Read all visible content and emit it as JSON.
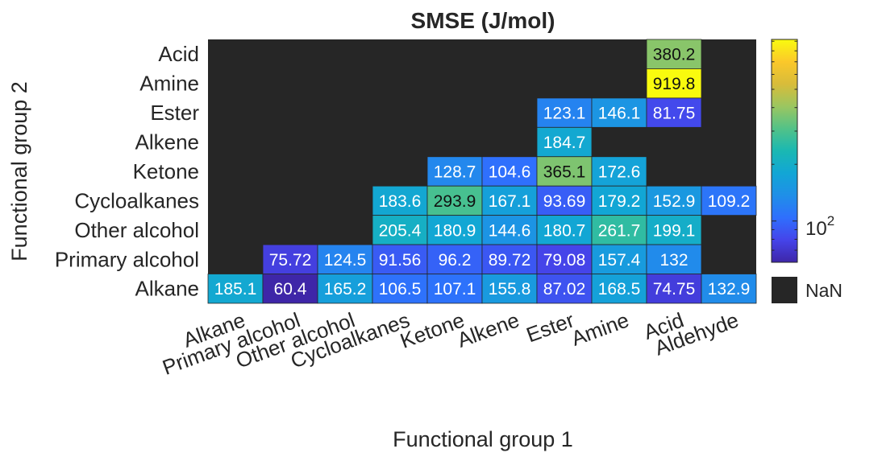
{
  "chart_data": {
    "type": "heatmap",
    "title": "SMSE (J/mol)",
    "xlabel": "Functional group 1",
    "ylabel": "Functional group 2",
    "x_categories": [
      "Alkane",
      "Primary alcohol",
      "Other alcohol",
      "Cycloalkanes",
      "Ketone",
      "Alkene",
      "Ester",
      "Amine",
      "Acid",
      "Aldehyde"
    ],
    "y_categories": [
      "Acid",
      "Amine",
      "Ester",
      "Alkene",
      "Ketone",
      "Cycloalkanes",
      "Other alcohol",
      "Primary alcohol",
      "Alkane"
    ],
    "values": [
      [
        null,
        null,
        null,
        null,
        null,
        null,
        null,
        null,
        380.2,
        null
      ],
      [
        null,
        null,
        null,
        null,
        null,
        null,
        null,
        null,
        919.8,
        null
      ],
      [
        null,
        null,
        null,
        null,
        null,
        null,
        123.1,
        146.1,
        81.75,
        null
      ],
      [
        null,
        null,
        null,
        null,
        null,
        null,
        184.7,
        null,
        null,
        null
      ],
      [
        null,
        null,
        null,
        null,
        128.7,
        104.6,
        365.1,
        172.6,
        null,
        null
      ],
      [
        null,
        null,
        null,
        183.6,
        293.9,
        167.1,
        93.69,
        179.2,
        152.9,
        109.2
      ],
      [
        null,
        null,
        null,
        205.4,
        180.9,
        144.6,
        180.7,
        261.7,
        199.1,
        null
      ],
      [
        null,
        75.72,
        124.5,
        91.56,
        96.2,
        89.72,
        79.08,
        157.4,
        132,
        null
      ],
      [
        185.1,
        60.4,
        165.2,
        106.5,
        107.1,
        155.8,
        87.02,
        168.5,
        74.75,
        132.9
      ]
    ],
    "labels": [
      [
        null,
        null,
        null,
        null,
        null,
        null,
        null,
        null,
        "380.2",
        null
      ],
      [
        null,
        null,
        null,
        null,
        null,
        null,
        null,
        null,
        "919.8",
        null
      ],
      [
        null,
        null,
        null,
        null,
        null,
        null,
        "123.1",
        "146.1",
        "81.75",
        null
      ],
      [
        null,
        null,
        null,
        null,
        null,
        null,
        "184.7",
        null,
        null,
        null
      ],
      [
        null,
        null,
        null,
        null,
        "128.7",
        "104.6",
        "365.1",
        "172.6",
        null,
        null
      ],
      [
        null,
        null,
        null,
        "183.6",
        "293.9",
        "167.1",
        "93.69",
        "179.2",
        "152.9",
        "109.2"
      ],
      [
        null,
        null,
        null,
        "205.4",
        "180.9",
        "144.6",
        "180.7",
        "261.7",
        "199.1",
        null
      ],
      [
        null,
        "75.72",
        "124.5",
        "91.56",
        "96.2",
        "89.72",
        "79.08",
        "157.4",
        "132",
        null
      ],
      [
        "185.1",
        "60.4",
        "165.2",
        "106.5",
        "107.1",
        "155.8",
        "87.02",
        "168.5",
        "74.75",
        "132.9"
      ]
    ],
    "color_scale": "log",
    "colormap": "parula",
    "clim": [
      60.4,
      919.8
    ],
    "colorbar_tick_base": "10",
    "colorbar_tick_exp": "2",
    "nan_label": "NaN",
    "nan_color": "#262626"
  }
}
